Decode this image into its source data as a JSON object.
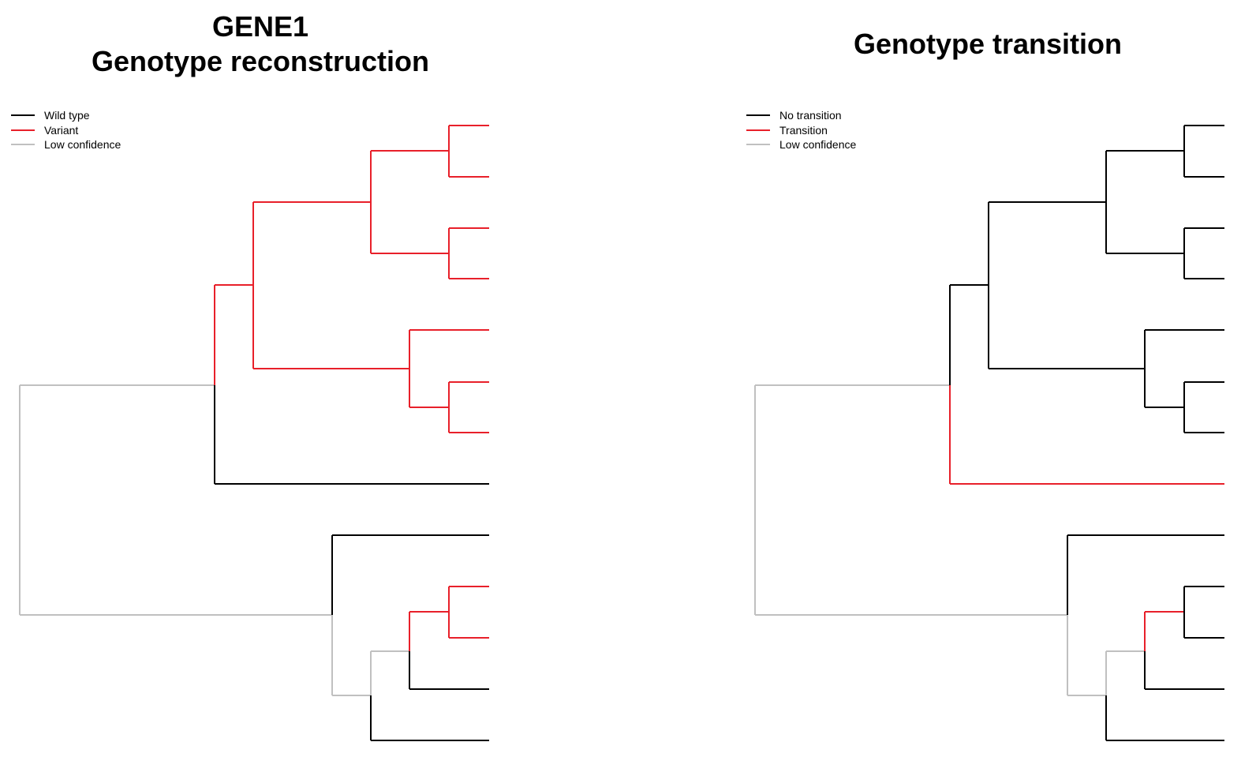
{
  "colors": {
    "wild_type": "#000000",
    "variant": "#e8202a",
    "low_confidence": "#c0c0c0"
  },
  "left_panel": {
    "title_line1": "GENE1",
    "title_line2": "Genotype reconstruction",
    "legend": [
      {
        "label": "Wild type",
        "color": "#000000"
      },
      {
        "label": "Variant",
        "color": "#e8202a"
      },
      {
        "label": "Low confidence",
        "color": "#c0c0c0"
      }
    ]
  },
  "right_panel": {
    "title": "Genotype transition",
    "legend": [
      {
        "label": "No transition",
        "color": "#000000"
      },
      {
        "label": "Transition",
        "color": "#e8202a"
      },
      {
        "label": "Low confidence",
        "color": "#c0c0c0"
      }
    ]
  }
}
